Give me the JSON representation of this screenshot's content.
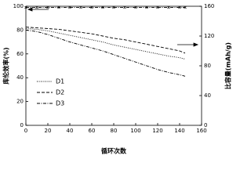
{
  "chart_data": {
    "type": "line",
    "x_label": "循环次数",
    "y_label": "库伦效率(%)",
    "y2_label": "比容量(mAh/g)",
    "x": [
      0,
      10,
      20,
      30,
      40,
      50,
      60,
      70,
      80,
      90,
      100,
      110,
      120,
      130,
      140,
      145
    ],
    "xlim": [
      0,
      160
    ],
    "xticks": [
      0,
      20,
      40,
      60,
      80,
      100,
      120,
      140,
      160
    ],
    "ylim": [
      0,
      100
    ],
    "yticks": [
      0,
      20,
      40,
      60,
      80,
      100
    ],
    "y2lim": [
      0,
      160
    ],
    "y2ticks": [
      0,
      40,
      80,
      120,
      160
    ],
    "series": [
      {
        "color": "#000000",
        "style": "dashdot",
        "marker": true,
        "axis": "y",
        "values": [
          99,
          99,
          99,
          99,
          99,
          99,
          99,
          99,
          99,
          99,
          99,
          99,
          99,
          99,
          99,
          99
        ]
      },
      {
        "name": "D1",
        "color": "#000000",
        "style": "dotted",
        "axis": "y2",
        "values": [
          130,
          129,
          127,
          124,
          121,
          118,
          115,
          112,
          108,
          105,
          102,
          99,
          96,
          93,
          91,
          89
        ]
      },
      {
        "name": "D2",
        "color": "#000000",
        "style": "dashed",
        "axis": "y2",
        "values": [
          132,
          131,
          130,
          129,
          127,
          125,
          123,
          120,
          117,
          115,
          112,
          109,
          106,
          103,
          100,
          97
        ]
      },
      {
        "name": "D3",
        "color": "#000000",
        "style": "dashdot",
        "axis": "y2",
        "values": [
          128,
          126,
          122,
          117,
          112,
          108,
          104,
          100,
          95,
          90,
          85,
          80,
          75,
          71,
          68,
          66
        ]
      }
    ]
  }
}
